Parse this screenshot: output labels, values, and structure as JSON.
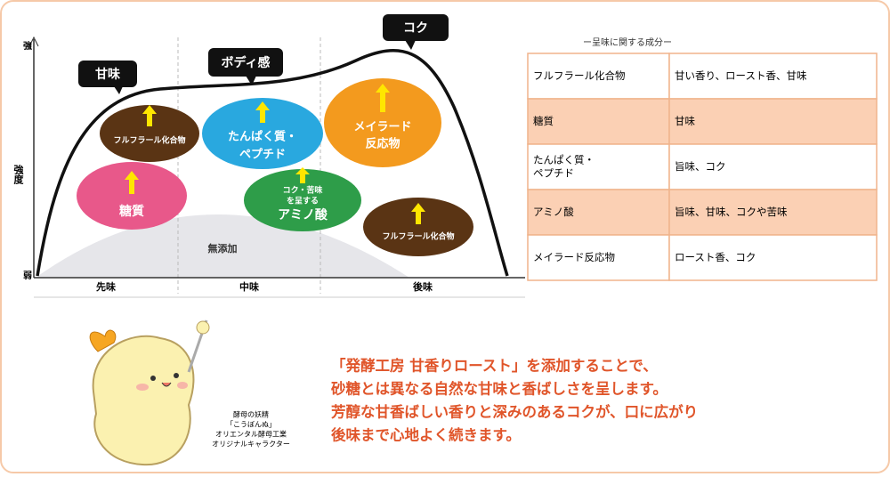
{
  "chart": {
    "y_axis": {
      "top": "強",
      "label": "強度",
      "bottom": "弱"
    },
    "x_axis": [
      "先味",
      "中味",
      "後味"
    ],
    "callouts": [
      "甘味",
      "ボディ感",
      "コク"
    ],
    "components": [
      {
        "lines": [
          "フルフラール化合物"
        ]
      },
      {
        "lines": [
          "糖質"
        ]
      },
      {
        "lines": [
          "たんぱく質・",
          "ペプチド"
        ]
      },
      {
        "lines": [
          "コク・苦味",
          "を呈する",
          "アミノ酸"
        ]
      },
      {
        "lines": [
          "メイラード",
          "反応物"
        ]
      },
      {
        "lines": [
          "フルフラール化合物"
        ]
      }
    ],
    "baseline": "無添加"
  },
  "table": {
    "title": "ー呈味に関する成分ー",
    "rows": [
      [
        [
          "フルフラール化合物"
        ],
        [
          "甘い香り、ロースト香、甘味"
        ]
      ],
      [
        [
          "糖質"
        ],
        [
          "甘味"
        ]
      ],
      [
        [
          "たんぱく質・",
          "ペプチド"
        ],
        [
          "旨味、コク"
        ]
      ],
      [
        [
          "アミノ酸"
        ],
        [
          "旨味、甘味、コクや苦味"
        ]
      ],
      [
        [
          "メイラード反応物"
        ],
        [
          "ロースト香、コク"
        ]
      ]
    ]
  },
  "character": {
    "caption": [
      "酵母の妖精",
      "「こうぼんぬ」",
      "オリエンタル酵母工業",
      "オリジナルキャラクター"
    ]
  },
  "message": [
    "「発酵工房 甘香りロースト」を添加することで、",
    "砂糖とは異なる自然な甘味と香ばしさを呈します。",
    "芳醇な甘香ばしい香りと深みのあるコクが、口に広がり",
    "後味まで心地よく続きます。"
  ]
}
